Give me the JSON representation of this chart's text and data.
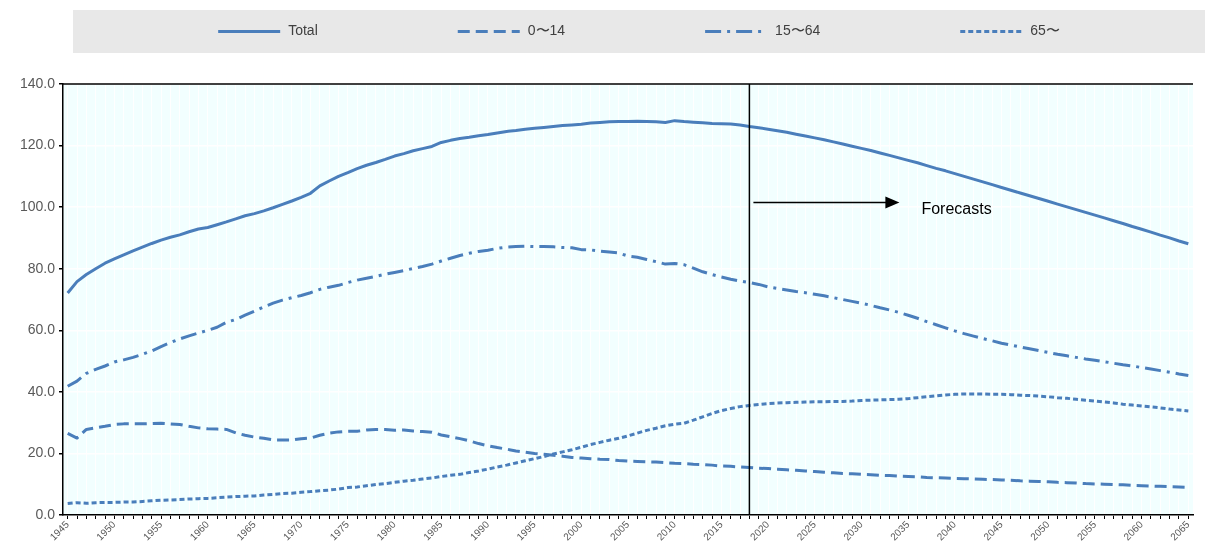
{
  "chart_data": {
    "type": "line",
    "x": [
      1945,
      1946,
      1947,
      1948,
      1949,
      1950,
      1951,
      1952,
      1953,
      1954,
      1955,
      1956,
      1957,
      1958,
      1959,
      1960,
      1961,
      1962,
      1963,
      1964,
      1965,
      1966,
      1967,
      1968,
      1969,
      1970,
      1971,
      1972,
      1973,
      1974,
      1975,
      1976,
      1977,
      1978,
      1979,
      1980,
      1981,
      1982,
      1983,
      1984,
      1985,
      1986,
      1987,
      1988,
      1989,
      1990,
      1991,
      1992,
      1993,
      1994,
      1995,
      1996,
      1997,
      1998,
      1999,
      2000,
      2001,
      2002,
      2003,
      2004,
      2005,
      2006,
      2007,
      2008,
      2009,
      2010,
      2011,
      2012,
      2013,
      2014,
      2015,
      2016,
      2017,
      2018,
      2019,
      2020,
      2021,
      2022,
      2023,
      2024,
      2025,
      2026,
      2027,
      2028,
      2029,
      2030,
      2031,
      2032,
      2033,
      2034,
      2035,
      2036,
      2037,
      2038,
      2039,
      2040,
      2041,
      2042,
      2043,
      2044,
      2045,
      2046,
      2047,
      2048,
      2049,
      2050,
      2051,
      2052,
      2053,
      2054,
      2055,
      2056,
      2057,
      2058,
      2059,
      2060,
      2061,
      2062,
      2063,
      2064,
      2065
    ],
    "series": [
      {
        "name": "Total",
        "color": "#4a7ebb",
        "line_style": "solid",
        "values": [
          72.1,
          75.8,
          78.1,
          80.0,
          81.8,
          83.2,
          84.5,
          85.8,
          87.0,
          88.2,
          89.3,
          90.2,
          91.0,
          92.0,
          92.9,
          93.4,
          94.3,
          95.2,
          96.2,
          97.2,
          97.9,
          98.8,
          99.8,
          100.9,
          102.0,
          103.2,
          104.5,
          106.9,
          108.5,
          110.0,
          111.2,
          112.5,
          113.6,
          114.5,
          115.5,
          116.6,
          117.4,
          118.3,
          119.0,
          119.7,
          121.0,
          121.7,
          122.3,
          122.7,
          123.2,
          123.6,
          124.1,
          124.6,
          124.9,
          125.3,
          125.6,
          125.9,
          126.2,
          126.5,
          126.7,
          126.9,
          127.3,
          127.5,
          127.7,
          127.8,
          127.8,
          127.9,
          127.8,
          127.7,
          127.5,
          128.1,
          127.8,
          127.6,
          127.4,
          127.2,
          127.1,
          127.0,
          126.7,
          126.2,
          125.8,
          125.3,
          124.8,
          124.3,
          123.7,
          123.1,
          122.5,
          121.9,
          121.2,
          120.5,
          119.8,
          119.1,
          118.4,
          117.6,
          116.8,
          116.0,
          115.2,
          114.4,
          113.5,
          112.6,
          111.8,
          110.9,
          110.0,
          109.1,
          108.2,
          107.3,
          106.4,
          105.5,
          104.6,
          103.7,
          102.8,
          101.9,
          101.0,
          100.1,
          99.2,
          98.3,
          97.4,
          96.5,
          95.6,
          94.7,
          93.7,
          92.8,
          91.9,
          90.9,
          90.0,
          89.0,
          88.1
        ]
      },
      {
        "name": "0〜14",
        "color": "#4a7ebb",
        "line_style": "dashed",
        "values": [
          26.5,
          25.0,
          27.8,
          28.3,
          28.8,
          29.4,
          29.6,
          29.6,
          29.6,
          29.7,
          29.8,
          29.6,
          29.4,
          28.8,
          28.3,
          28.0,
          27.9,
          27.8,
          26.7,
          25.9,
          25.3,
          24.9,
          24.4,
          24.4,
          24.4,
          24.8,
          25.0,
          25.9,
          26.6,
          27.0,
          27.2,
          27.2,
          27.6,
          27.8,
          27.8,
          27.5,
          27.6,
          27.3,
          27.1,
          26.9,
          26.0,
          25.4,
          24.8,
          24.1,
          23.2,
          22.5,
          21.9,
          21.4,
          20.8,
          20.4,
          20.0,
          19.7,
          19.4,
          19.1,
          18.7,
          18.5,
          18.3,
          18.1,
          18.0,
          17.7,
          17.5,
          17.4,
          17.3,
          17.2,
          17.0,
          16.8,
          16.7,
          16.5,
          16.4,
          16.2,
          15.9,
          15.8,
          15.6,
          15.4,
          15.2,
          15.1,
          14.9,
          14.7,
          14.5,
          14.3,
          14.1,
          13.9,
          13.7,
          13.5,
          13.4,
          13.2,
          13.1,
          12.9,
          12.8,
          12.6,
          12.5,
          12.4,
          12.2,
          12.1,
          12.0,
          11.9,
          11.8,
          11.7,
          11.6,
          11.5,
          11.4,
          11.3,
          11.1,
          11.0,
          10.9,
          10.8,
          10.6,
          10.5,
          10.4,
          10.2,
          10.1,
          10.0,
          9.9,
          9.8,
          9.6,
          9.5,
          9.4,
          9.3,
          9.2,
          9.1,
          9.0
        ]
      },
      {
        "name": "15〜64",
        "color": "#4a7ebb",
        "line_style": "dashdot",
        "values": [
          41.8,
          43.5,
          46.0,
          47.3,
          48.4,
          49.7,
          50.4,
          51.2,
          52.2,
          53.3,
          54.7,
          56.0,
          57.2,
          58.2,
          59.1,
          60.0,
          61.0,
          62.6,
          63.5,
          64.9,
          66.2,
          67.6,
          68.8,
          69.8,
          70.6,
          71.3,
          72.2,
          73.3,
          74.0,
          74.6,
          75.5,
          76.3,
          76.9,
          77.5,
          78.2,
          78.8,
          79.4,
          80.1,
          80.7,
          81.5,
          82.5,
          83.4,
          84.3,
          85.0,
          85.6,
          86.0,
          86.6,
          87.0,
          87.2,
          87.3,
          87.2,
          87.2,
          87.1,
          86.9,
          86.8,
          86.2,
          86.1,
          85.7,
          85.4,
          85.1,
          84.1,
          83.7,
          83.0,
          82.3,
          81.5,
          81.7,
          81.3,
          80.2,
          79.0,
          78.1,
          77.3,
          76.6,
          76.0,
          75.5,
          74.9,
          74.1,
          73.6,
          73.1,
          72.6,
          72.2,
          71.7,
          71.2,
          70.6,
          70.0,
          69.4,
          68.8,
          68.1,
          67.3,
          66.6,
          65.8,
          64.9,
          63.9,
          62.8,
          61.8,
          60.8,
          59.8,
          58.9,
          58.1,
          57.3,
          56.6,
          55.8,
          55.2,
          54.6,
          54.0,
          53.4,
          52.8,
          52.2,
          51.7,
          51.2,
          50.7,
          50.3,
          49.8,
          49.3,
          48.8,
          48.4,
          47.9,
          47.4,
          46.9,
          46.4,
          45.8,
          45.3
        ]
      },
      {
        "name": "65〜",
        "color": "#4a7ebb",
        "line_style": "dotted",
        "values": [
          3.7,
          4.0,
          3.8,
          4.0,
          4.1,
          4.1,
          4.2,
          4.2,
          4.4,
          4.6,
          4.8,
          4.9,
          5.0,
          5.2,
          5.3,
          5.4,
          5.6,
          5.8,
          6.0,
          6.1,
          6.2,
          6.5,
          6.7,
          7.0,
          7.1,
          7.4,
          7.6,
          7.9,
          8.1,
          8.4,
          8.9,
          9.1,
          9.5,
          9.9,
          10.2,
          10.6,
          11.0,
          11.3,
          11.7,
          12.0,
          12.5,
          12.9,
          13.2,
          13.8,
          14.3,
          14.9,
          15.6,
          16.2,
          16.9,
          17.6,
          18.3,
          19.0,
          19.8,
          20.5,
          21.2,
          22.0,
          22.9,
          23.6,
          24.3,
          24.9,
          25.7,
          26.6,
          27.5,
          28.2,
          29.0,
          29.5,
          29.8,
          30.8,
          31.9,
          33.0,
          33.9,
          34.6,
          35.2,
          35.6,
          35.9,
          36.2,
          36.4,
          36.5,
          36.6,
          36.7,
          36.8,
          36.8,
          36.9,
          36.9,
          37.0,
          37.2,
          37.3,
          37.4,
          37.5,
          37.6,
          37.8,
          38.1,
          38.4,
          38.7,
          39.0,
          39.2,
          39.3,
          39.3,
          39.3,
          39.2,
          39.2,
          39.1,
          38.9,
          38.8,
          38.6,
          38.4,
          38.1,
          37.9,
          37.6,
          37.3,
          37.0,
          36.7,
          36.4,
          36.0,
          35.7,
          35.4,
          35.1,
          34.8,
          34.4,
          34.1,
          33.8
        ]
      }
    ],
    "xlim": [
      1944.5,
      2065.5
    ],
    "xticks": [
      1945,
      {
        "value": 1946,
        "label": null
      },
      {
        "value": 1947,
        "label": null
      },
      {
        "value": 1948,
        "label": null
      },
      {
        "value": 1949,
        "label": null
      },
      1950,
      {
        "value": 1951,
        "label": null
      },
      {
        "value": 1952,
        "label": null
      },
      {
        "value": 1953,
        "label": null
      },
      {
        "value": 1954,
        "label": null
      },
      1955,
      {
        "value": 1956,
        "label": null
      },
      {
        "value": 1957,
        "label": null
      },
      {
        "value": 1958,
        "label": null
      },
      {
        "value": 1959,
        "label": null
      },
      1960,
      {
        "value": 1961,
        "label": null
      },
      {
        "value": 1962,
        "label": null
      },
      {
        "value": 1963,
        "label": null
      },
      {
        "value": 1964,
        "label": null
      },
      1965,
      {
        "value": 1966,
        "label": null
      },
      {
        "value": 1967,
        "label": null
      },
      {
        "value": 1968,
        "label": null
      },
      {
        "value": 1969,
        "label": null
      },
      1970,
      {
        "value": 1971,
        "label": null
      },
      {
        "value": 1972,
        "label": null
      },
      {
        "value": 1973,
        "label": null
      },
      {
        "value": 1974,
        "label": null
      },
      1975,
      {
        "value": 1976,
        "label": null
      },
      {
        "value": 1977,
        "label": null
      },
      {
        "value": 1978,
        "label": null
      },
      {
        "value": 1979,
        "label": null
      },
      1980,
      {
        "value": 1981,
        "label": null
      },
      {
        "value": 1982,
        "label": null
      },
      {
        "value": 1983,
        "label": null
      },
      {
        "value": 1984,
        "label": null
      },
      1985,
      {
        "value": 1986,
        "label": null
      },
      {
        "value": 1987,
        "label": null
      },
      {
        "value": 1988,
        "label": null
      },
      {
        "value": 1989,
        "label": null
      },
      1990,
      {
        "value": 1991,
        "label": null
      },
      {
        "value": 1992,
        "label": null
      },
      {
        "value": 1993,
        "label": null
      },
      {
        "value": 1994,
        "label": null
      },
      1995,
      {
        "value": 1996,
        "label": null
      },
      {
        "value": 1997,
        "label": null
      },
      {
        "value": 1998,
        "label": null
      },
      {
        "value": 1999,
        "label": null
      },
      2000,
      {
        "value": 2001,
        "label": null
      },
      {
        "value": 2002,
        "label": null
      },
      {
        "value": 2003,
        "label": null
      },
      {
        "value": 2004,
        "label": null
      },
      2005,
      {
        "value": 2006,
        "label": null
      },
      {
        "value": 2007,
        "label": null
      },
      {
        "value": 2008,
        "label": null
      },
      {
        "value": 2009,
        "label": null
      },
      2010,
      {
        "value": 2011,
        "label": null
      },
      {
        "value": 2012,
        "label": null
      },
      {
        "value": 2013,
        "label": null
      },
      {
        "value": 2014,
        "label": null
      },
      2015,
      {
        "value": 2016,
        "label": null
      },
      {
        "value": 2017,
        "label": null
      },
      {
        "value": 2018,
        "label": null
      },
      {
        "value": 2019,
        "label": null
      },
      2020,
      {
        "value": 2021,
        "label": null
      },
      {
        "value": 2022,
        "label": null
      },
      {
        "value": 2023,
        "label": null
      },
      {
        "value": 2024,
        "label": null
      },
      2025,
      {
        "value": 2026,
        "label": null
      },
      {
        "value": 2027,
        "label": null
      },
      {
        "value": 2028,
        "label": null
      },
      {
        "value": 2029,
        "label": null
      },
      2030,
      {
        "value": 2031,
        "label": null
      },
      {
        "value": 2032,
        "label": null
      },
      {
        "value": 2033,
        "label": null
      },
      {
        "value": 2034,
        "label": null
      },
      2035,
      {
        "value": 2036,
        "label": null
      },
      {
        "value": 2037,
        "label": null
      },
      {
        "value": 2038,
        "label": null
      },
      {
        "value": 2039,
        "label": null
      },
      2040,
      {
        "value": 2041,
        "label": null
      },
      {
        "value": 2042,
        "label": null
      },
      {
        "value": 2043,
        "label": null
      },
      {
        "value": 2044,
        "label": null
      },
      2045,
      {
        "value": 2046,
        "label": null
      },
      {
        "value": 2047,
        "label": null
      },
      {
        "value": 2048,
        "label": null
      },
      {
        "value": 2049,
        "label": null
      },
      2050,
      {
        "value": 2051,
        "label": null
      },
      {
        "value": 2052,
        "label": null
      },
      {
        "value": 2053,
        "label": null
      },
      {
        "value": 2054,
        "label": null
      },
      2055,
      {
        "value": 2056,
        "label": null
      },
      {
        "value": 2057,
        "label": null
      },
      {
        "value": 2058,
        "label": null
      },
      {
        "value": 2059,
        "label": null
      },
      2060,
      {
        "value": 2061,
        "label": null
      },
      {
        "value": 2062,
        "label": null
      },
      {
        "value": 2063,
        "label": null
      },
      {
        "value": 2064,
        "label": null
      },
      2065
    ],
    "ylim": [
      0,
      140
    ],
    "yticks": [
      {
        "value": 0,
        "label": "0.0"
      },
      {
        "value": 20,
        "label": "20.0"
      },
      {
        "value": 40,
        "label": "40.0"
      },
      {
        "value": 60,
        "label": "60.0"
      },
      {
        "value": 80,
        "label": "80.0"
      },
      {
        "value": 100,
        "label": "100.0"
      },
      {
        "value": 120,
        "label": "120.0"
      },
      {
        "value": 140,
        "label": "140.0"
      }
    ],
    "grid": true,
    "legend": "top",
    "ref_lines": [
      {
        "axis": "x",
        "value": 2018,
        "color": "#000000"
      }
    ],
    "annotations": [
      "Forecasts"
    ]
  }
}
